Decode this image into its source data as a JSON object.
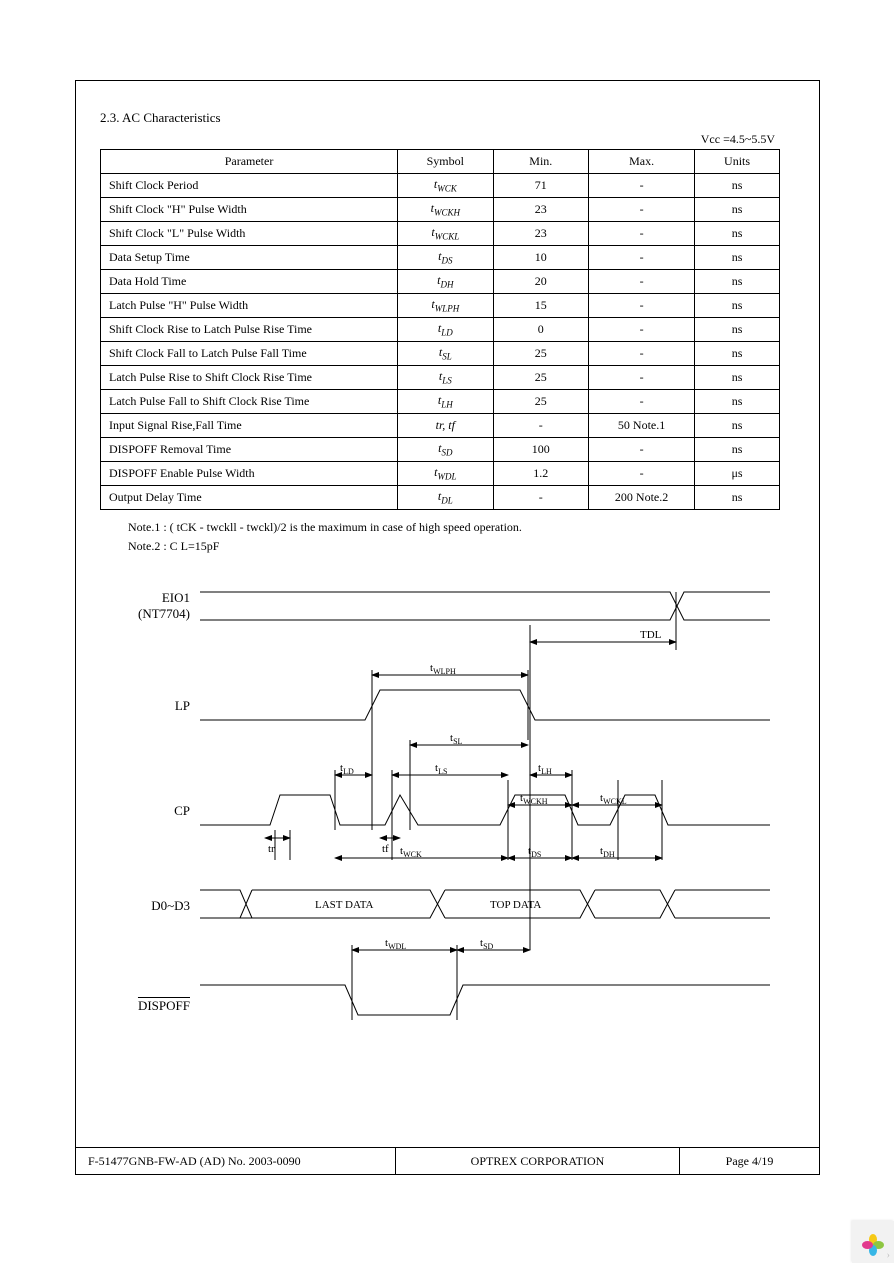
{
  "section_title": "2.3. AC Characteristics",
  "vcc_label": "Vcc =4.5~5.5V",
  "table": {
    "headers": [
      "Parameter",
      "Symbol",
      "Min.",
      "Max.",
      "Units"
    ],
    "col_widths": [
      "280px",
      "90px",
      "90px",
      "100px",
      "80px"
    ],
    "rows": [
      {
        "param": "Shift Clock Period",
        "sym_t": "t",
        "sym_sub": "WCK",
        "min": "71",
        "max": "-",
        "units": "ns"
      },
      {
        "param": "Shift Clock \"H\" Pulse Width",
        "sym_t": "t",
        "sym_sub": "WCKH",
        "min": "23",
        "max": "-",
        "units": "ns"
      },
      {
        "param": "Shift Clock \"L\" Pulse Width",
        "sym_t": "t",
        "sym_sub": "WCKL",
        "min": "23",
        "max": "-",
        "units": "ns"
      },
      {
        "param": "Data Setup Time",
        "sym_t": "t",
        "sym_sub": "DS",
        "min": "10",
        "max": "-",
        "units": "ns"
      },
      {
        "param": "Data Hold Time",
        "sym_t": "t",
        "sym_sub": "DH",
        "min": "20",
        "max": "-",
        "units": "ns"
      },
      {
        "param": "Latch Pulse \"H\" Pulse Width",
        "sym_t": "t",
        "sym_sub": "WLPH",
        "min": "15",
        "max": "-",
        "units": "ns"
      },
      {
        "param": "Shift Clock Rise to Latch Pulse Rise Time",
        "sym_t": "t",
        "sym_sub": "LD",
        "min": "0",
        "max": "-",
        "units": "ns"
      },
      {
        "param": "Shift Clock Fall to Latch Pulse Fall Time",
        "sym_t": "t",
        "sym_sub": "SL",
        "min": "25",
        "max": "-",
        "units": "ns"
      },
      {
        "param": "Latch Pulse Rise to Shift Clock Rise Time",
        "sym_t": "t",
        "sym_sub": "LS",
        "min": "25",
        "max": "-",
        "units": "ns"
      },
      {
        "param": "Latch Pulse Fall to Shift Clock Rise Time",
        "sym_t": "t",
        "sym_sub": "LH",
        "min": "25",
        "max": "-",
        "units": "ns"
      },
      {
        "param": "Input Signal Rise,Fall Time",
        "sym_plain": "tr,  tf",
        "min": "-",
        "max": "50  Note.1",
        "units": "ns"
      },
      {
        "param": "DISPOFF Removal Time",
        "sym_t": "t",
        "sym_sub": "SD",
        "min": "100",
        "max": "-",
        "units": "ns"
      },
      {
        "param": "DISPOFF Enable Pulse Width",
        "sym_t": "t",
        "sym_sub": "WDL",
        "min": "1.2",
        "max": "-",
        "units": "μs"
      },
      {
        "param": "Output Delay Time",
        "sym_t": "t",
        "sym_sub": "DL",
        "min": "-",
        "max": "200 Note.2",
        "units": "ns"
      }
    ]
  },
  "notes": [
    "Note.1 : (    tCK -  twckll - twckl)/2 is the maximum in case of high speed operation.",
    "Note.2 : C     L=15pF"
  ],
  "timing": {
    "stroke": "#000000",
    "stroke_width": 1,
    "signals": {
      "eio1": {
        "label_line1": "EIO1",
        "label_line2": "(NT7704)"
      },
      "lp": {
        "label": "LP"
      },
      "cp": {
        "label": "CP"
      },
      "d": {
        "label": "D0~D3",
        "last": "LAST DATA",
        "top": "TOP DATA"
      },
      "disp": {
        "label": "DISPOFF",
        "overline": true
      }
    },
    "measures": {
      "TDL": "TDL",
      "tWLPH": "t_WLPH",
      "tSL": "t_SL",
      "tLD": "t_LD",
      "tLS": "t_LS",
      "tLH": "t_LH",
      "tr": "tr",
      "tf": "tf",
      "tWCK": "t_WCK",
      "tWCKH": "t_WCKH",
      "tWCKL": "t_WCKL",
      "tDS": "t_DS",
      "tDH": "t_DH",
      "tWDL": "t_WDL",
      "tSD": "t_SD"
    }
  },
  "footer": {
    "left": "F-51477GNB-FW-AD (AD) No. 2003-0090",
    "center": "OPTREX CORPORATION",
    "right": "Page 4/19"
  },
  "corner": {
    "petal_colors": [
      "#f6c915",
      "#8ec641",
      "#37b6e6",
      "#e23a8d"
    ],
    "chevron_color": "#bfbfbf"
  }
}
